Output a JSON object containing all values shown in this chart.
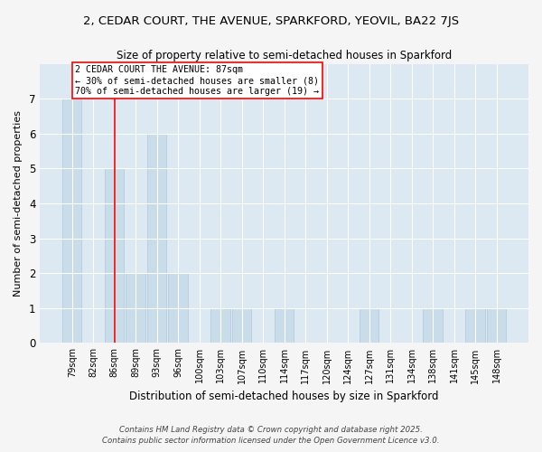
{
  "title_line1": "2, CEDAR COURT, THE AVENUE, SPARKFORD, YEOVIL, BA22 7JS",
  "title_line2": "Size of property relative to semi-detached houses in Sparkford",
  "xlabel": "Distribution of semi-detached houses by size in Sparkford",
  "ylabel": "Number of semi-detached properties",
  "categories": [
    "79sqm",
    "82sqm",
    "86sqm",
    "89sqm",
    "93sqm",
    "96sqm",
    "100sqm",
    "103sqm",
    "107sqm",
    "110sqm",
    "114sqm",
    "117sqm",
    "120sqm",
    "124sqm",
    "127sqm",
    "131sqm",
    "134sqm",
    "138sqm",
    "141sqm",
    "145sqm",
    "148sqm"
  ],
  "values": [
    7,
    0,
    5,
    2,
    6,
    2,
    0,
    1,
    1,
    0,
    1,
    0,
    0,
    0,
    1,
    0,
    0,
    1,
    0,
    1,
    1
  ],
  "bar_color": "#c8dcea",
  "bar_edge_color": "#b0c8dc",
  "red_line_index": 2,
  "red_line_label1": "2 CEDAR COURT THE AVENUE: 87sqm",
  "red_line_label2": "← 30% of semi-detached houses are smaller (8)",
  "red_line_label3": "70% of semi-detached houses are larger (19) →",
  "ylim": [
    0,
    8
  ],
  "yticks": [
    0,
    1,
    2,
    3,
    4,
    5,
    6,
    7,
    8
  ],
  "bg_color": "#dce8f2",
  "fig_bg_color": "#f5f5f5",
  "grid_color": "#ffffff",
  "footer_line1": "Contains HM Land Registry data © Crown copyright and database right 2025.",
  "footer_line2": "Contains public sector information licensed under the Open Government Licence v3.0."
}
